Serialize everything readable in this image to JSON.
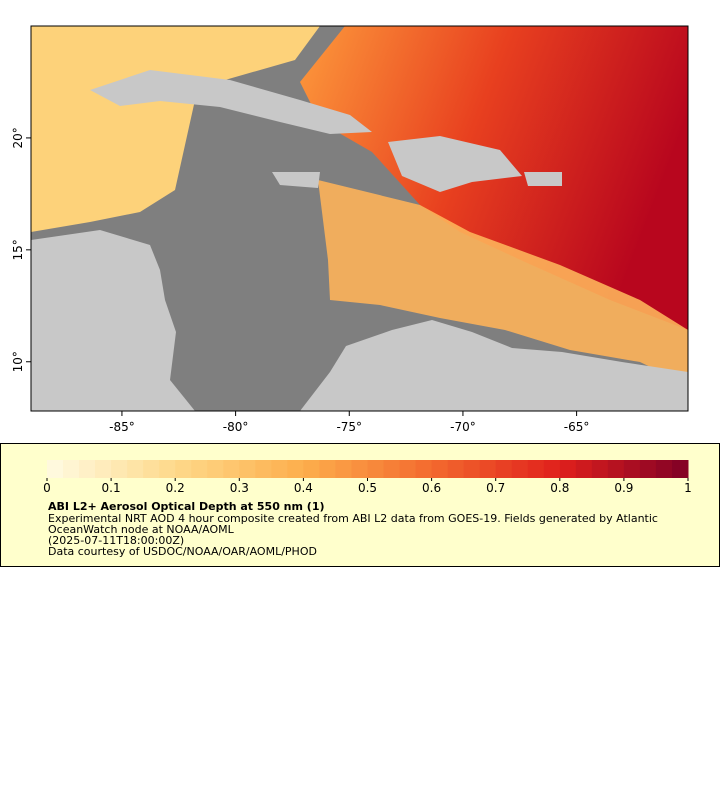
{
  "map": {
    "lonlim": [
      -89,
      -60.1
    ],
    "latlim": [
      7.8,
      25
    ],
    "lon_ticks": [
      {
        "value": -85,
        "label": "-85°"
      },
      {
        "value": -80,
        "label": "-80°"
      },
      {
        "value": -75,
        "label": "-75°"
      },
      {
        "value": -70,
        "label": "-70°"
      },
      {
        "value": -65,
        "label": "-65°"
      }
    ],
    "lat_ticks": [
      {
        "value": 10,
        "label": "10°"
      },
      {
        "value": 15,
        "label": "15°"
      },
      {
        "value": 20,
        "label": "20°"
      }
    ]
  },
  "legend": {
    "colorbar": {
      "lim": [
        0,
        1
      ],
      "ticks": [
        0,
        0.1,
        0.2,
        0.3,
        0.4,
        0.5,
        0.6,
        0.7,
        0.8,
        0.9,
        1
      ],
      "colors": [
        "#fffbe2",
        "#fed98a",
        "#fdae4c",
        "#f36a2e",
        "#e0201c",
        "#800026"
      ]
    },
    "title": "ABI L2+ Aerosol Optical Depth at 550 nm (1)",
    "lines": [
      "Experimental NRT AOD 4 hour composite created from ABI L2 data from GOES-19. Fields generated by Atlantic",
      "OceanWatch node at NOAA/AOML",
      "(2025-07-11T18:00:00Z)",
      "Data courtesy of USDOC/NOAA/OAR/AOML/PHOD"
    ]
  }
}
